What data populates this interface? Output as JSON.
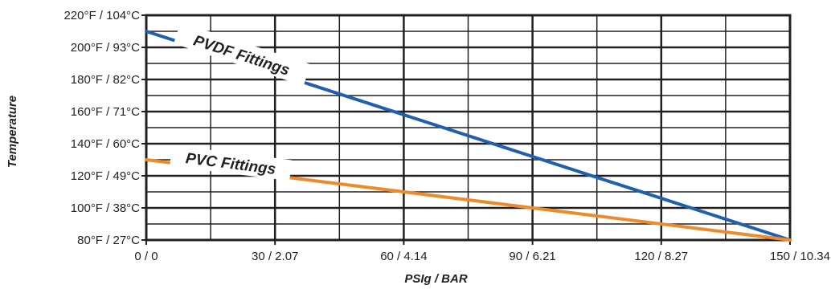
{
  "chart_data": {
    "type": "line",
    "title": "",
    "xlabel": "PSIg / BAR",
    "ylabel": "Temperature",
    "xlim": [
      0,
      150
    ],
    "ylim": [
      80,
      220
    ],
    "x_ticks": [
      {
        "value": 0,
        "label": "0 / 0"
      },
      {
        "value": 30,
        "label": "30 / 2.07"
      },
      {
        "value": 60,
        "label": "60 / 4.14"
      },
      {
        "value": 90,
        "label": "90 / 6.21"
      },
      {
        "value": 120,
        "label": "120 / 8.27"
      },
      {
        "value": 150,
        "label": "150 / 10.34"
      }
    ],
    "y_ticks": [
      {
        "value": 80,
        "label": "80°F / 27°C"
      },
      {
        "value": 100,
        "label": "100°F / 38°C"
      },
      {
        "value": 120,
        "label": "120°F / 49°C"
      },
      {
        "value": 140,
        "label": "140°F / 60°C"
      },
      {
        "value": 160,
        "label": "160°F / 71°C"
      },
      {
        "value": 180,
        "label": "180°F / 82°C"
      },
      {
        "value": 200,
        "label": "200°F / 93°C"
      },
      {
        "value": 220,
        "label": "220°F / 104°C"
      }
    ],
    "grid": true,
    "minor_x_gridlines": [
      15,
      45,
      75,
      105,
      135
    ],
    "minor_y_gridlines": [
      90,
      110,
      130,
      150,
      170,
      190,
      210
    ],
    "series": [
      {
        "name": "PVDF Fittings",
        "color": "#1f5fae",
        "x": [
          0,
          150
        ],
        "y": [
          210,
          80
        ]
      },
      {
        "name": "PVC Fittings",
        "color": "#ef8a2b",
        "x": [
          0,
          150
        ],
        "y": [
          130,
          80
        ]
      }
    ]
  }
}
